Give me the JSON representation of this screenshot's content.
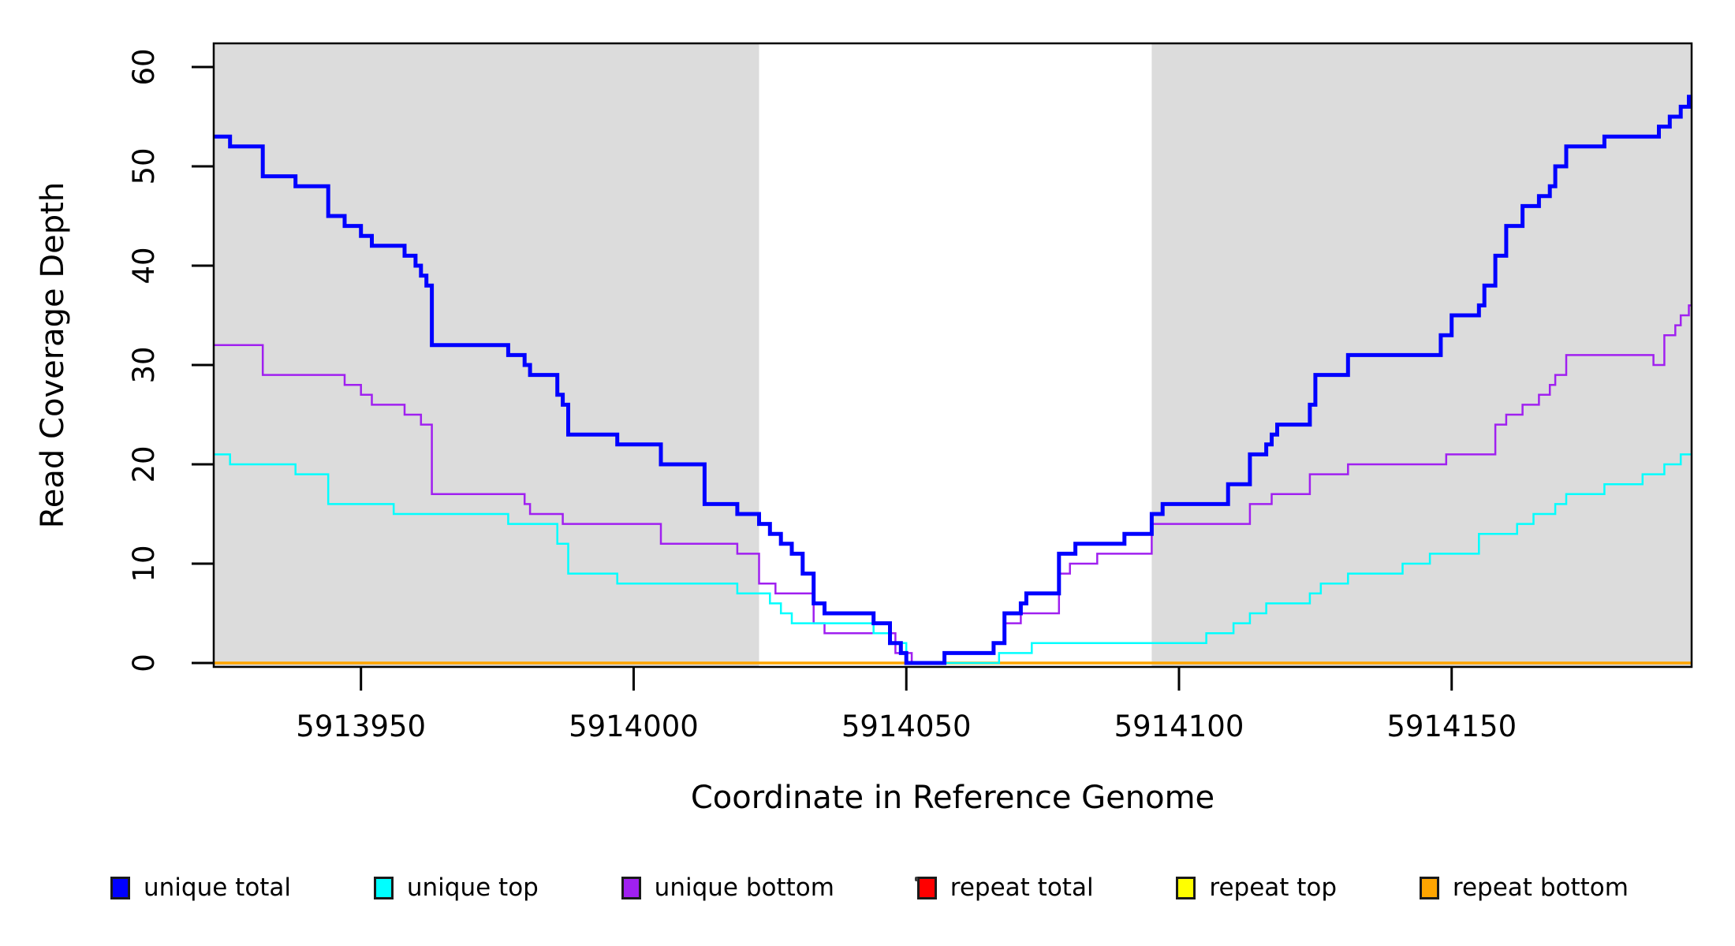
{
  "figure": {
    "background_color": "#FFFFFF",
    "shaded_band_color": "#DCDCDC",
    "axis_color": "#000000"
  },
  "chart_data": {
    "type": "line",
    "subtype": "step-coverage-plot",
    "title": "",
    "xlabel": "Coordinate in Reference Genome",
    "ylabel": "Read Coverage Depth",
    "x_domain": [
      5913923,
      5914194
    ],
    "ylim": [
      0,
      62
    ],
    "x_ticks": [
      5913950,
      5914000,
      5914050,
      5914100,
      5914150
    ],
    "y_ticks": [
      0,
      10,
      20,
      30,
      40,
      50,
      60
    ],
    "grid": false,
    "legend_position": "bottom",
    "shaded_regions": [
      {
        "x0": 5913923,
        "x1": 5914023
      },
      {
        "x0": 5914095,
        "x1": 5914194
      }
    ],
    "series": [
      {
        "name": "repeat total",
        "color": "#FF0000",
        "width": 2.5,
        "points": [
          [
            5913923,
            0
          ]
        ]
      },
      {
        "name": "repeat top",
        "color": "#FFFF00",
        "width": 2.5,
        "points": [
          [
            5913923,
            0
          ]
        ]
      },
      {
        "name": "repeat bottom",
        "color": "#FFA500",
        "width": 3.5,
        "points": [
          [
            5913923,
            0
          ]
        ]
      },
      {
        "name": "unique bottom",
        "color": "#A020F0",
        "width": 2.5,
        "points": [
          [
            5913923,
            32
          ],
          [
            5913932,
            29
          ],
          [
            5913947,
            28
          ],
          [
            5913950,
            27
          ],
          [
            5913952,
            26
          ],
          [
            5913958,
            25
          ],
          [
            5913961,
            24
          ],
          [
            5913963,
            17
          ],
          [
            5913980,
            16
          ],
          [
            5913981,
            15
          ],
          [
            5913987,
            14
          ],
          [
            5914005,
            12
          ],
          [
            5914019,
            11
          ],
          [
            5914023,
            8
          ],
          [
            5914026,
            7
          ],
          [
            5914033,
            4
          ],
          [
            5914035,
            3
          ],
          [
            5914048,
            1
          ],
          [
            5914051,
            0
          ],
          [
            5914057,
            1
          ],
          [
            5914066,
            2
          ],
          [
            5914068,
            4
          ],
          [
            5914071,
            5
          ],
          [
            5914078,
            9
          ],
          [
            5914080,
            10
          ],
          [
            5914085,
            11
          ],
          [
            5914095,
            14
          ],
          [
            5914113,
            16
          ],
          [
            5914117,
            17
          ],
          [
            5914124,
            19
          ],
          [
            5914131,
            20
          ],
          [
            5914149,
            21
          ],
          [
            5914158,
            24
          ],
          [
            5914160,
            25
          ],
          [
            5914163,
            26
          ],
          [
            5914166,
            27
          ],
          [
            5914168,
            28
          ],
          [
            5914169,
            29
          ],
          [
            5914171,
            31
          ],
          [
            5914187,
            30
          ],
          [
            5914189,
            33
          ],
          [
            5914191,
            34
          ],
          [
            5914192,
            35
          ],
          [
            5914193.5,
            36
          ]
        ]
      },
      {
        "name": "unique top",
        "color": "#00FFFF",
        "width": 2.5,
        "points": [
          [
            5913923,
            21
          ],
          [
            5913926,
            20
          ],
          [
            5913938,
            19
          ],
          [
            5913944,
            16
          ],
          [
            5913956,
            15
          ],
          [
            5913977,
            14
          ],
          [
            5913986,
            12
          ],
          [
            5913988,
            9
          ],
          [
            5913997,
            8
          ],
          [
            5914019,
            7
          ],
          [
            5914025,
            6
          ],
          [
            5914027,
            5
          ],
          [
            5914029,
            4
          ],
          [
            5914044,
            3
          ],
          [
            5914047,
            2
          ],
          [
            5914050,
            0
          ],
          [
            5914067,
            1
          ],
          [
            5914073,
            2
          ],
          [
            5914105,
            3
          ],
          [
            5914110,
            4
          ],
          [
            5914113,
            5
          ],
          [
            5914116,
            6
          ],
          [
            5914124,
            7
          ],
          [
            5914126,
            8
          ],
          [
            5914131,
            9
          ],
          [
            5914141,
            10
          ],
          [
            5914146,
            11
          ],
          [
            5914155,
            13
          ],
          [
            5914162,
            14
          ],
          [
            5914165,
            15
          ],
          [
            5914169,
            16
          ],
          [
            5914171,
            17
          ],
          [
            5914178,
            18
          ],
          [
            5914185,
            19
          ],
          [
            5914189,
            20
          ],
          [
            5914192,
            21
          ]
        ]
      },
      {
        "name": "unique total",
        "color": "#0000FF",
        "width": 5,
        "points": [
          [
            5913923,
            53
          ],
          [
            5913926,
            52
          ],
          [
            5913932,
            49
          ],
          [
            5913938,
            48
          ],
          [
            5913944,
            45
          ],
          [
            5913947,
            44
          ],
          [
            5913950,
            43
          ],
          [
            5913952,
            42
          ],
          [
            5913958,
            41
          ],
          [
            5913960,
            40
          ],
          [
            5913961,
            39
          ],
          [
            5913962,
            38
          ],
          [
            5913963,
            32
          ],
          [
            5913977,
            31
          ],
          [
            5913980,
            30
          ],
          [
            5913981,
            29
          ],
          [
            5913986,
            27
          ],
          [
            5913987,
            26
          ],
          [
            5913988,
            23
          ],
          [
            5913997,
            22
          ],
          [
            5914005,
            20
          ],
          [
            5914013,
            16
          ],
          [
            5914019,
            15
          ],
          [
            5914023,
            14
          ],
          [
            5914025,
            13
          ],
          [
            5914027,
            12
          ],
          [
            5914029,
            11
          ],
          [
            5914031,
            9
          ],
          [
            5914033,
            6
          ],
          [
            5914035,
            5
          ],
          [
            5914044,
            4
          ],
          [
            5914047,
            2
          ],
          [
            5914049,
            1
          ],
          [
            5914050,
            0
          ],
          [
            5914057,
            1
          ],
          [
            5914066,
            2
          ],
          [
            5914068,
            5
          ],
          [
            5914071,
            6
          ],
          [
            5914072,
            7
          ],
          [
            5914078,
            11
          ],
          [
            5914081,
            12
          ],
          [
            5914090,
            13
          ],
          [
            5914095,
            15
          ],
          [
            5914097,
            16
          ],
          [
            5914109,
            18
          ],
          [
            5914113,
            21
          ],
          [
            5914116,
            22
          ],
          [
            5914117,
            23
          ],
          [
            5914118,
            24
          ],
          [
            5914124,
            26
          ],
          [
            5914125,
            29
          ],
          [
            5914131,
            31
          ],
          [
            5914148,
            33
          ],
          [
            5914150,
            35
          ],
          [
            5914155,
            36
          ],
          [
            5914156,
            38
          ],
          [
            5914158,
            41
          ],
          [
            5914160,
            44
          ],
          [
            5914163,
            46
          ],
          [
            5914166,
            47
          ],
          [
            5914168,
            48
          ],
          [
            5914169,
            50
          ],
          [
            5914171,
            52
          ],
          [
            5914178,
            53
          ],
          [
            5914188,
            54
          ],
          [
            5914190,
            55
          ],
          [
            5914192,
            56
          ],
          [
            5914193.5,
            57
          ]
        ]
      }
    ]
  },
  "legend": {
    "items": [
      {
        "label": "unique total",
        "color": "#0000FF"
      },
      {
        "label": "unique top",
        "color": "#00FFFF"
      },
      {
        "label": "unique bottom",
        "color": "#A020F0"
      },
      {
        "label": "repeat total",
        "color": "#FF0000"
      },
      {
        "label": "repeat top",
        "color": "#FFFF00"
      },
      {
        "label": "repeat bottom",
        "color": "#FFA500"
      }
    ]
  }
}
